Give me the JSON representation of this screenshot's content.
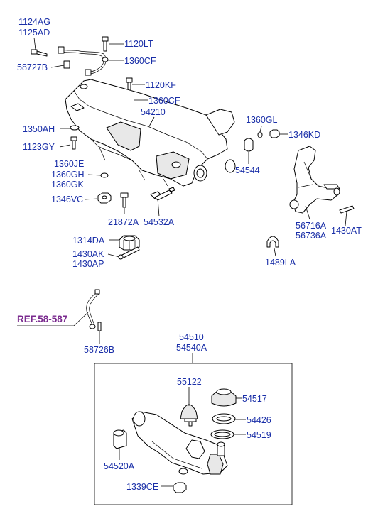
{
  "labels": {
    "p1124AG": "1124AG",
    "p1125AD": "1125AD",
    "p1120LT": "1120LT",
    "p1360CF_a": "1360CF",
    "p58727B": "58727B",
    "p1120KF": "1120KF",
    "p1360CF_b": "1360CF",
    "p54210": "54210",
    "p1350AH": "1350AH",
    "p1123GY": "1123GY",
    "p1360GL": "1360GL",
    "p1346KD": "1346KD",
    "p1360JE": "1360JE",
    "p1360GH": "1360GH",
    "p1360GK": "1360GK",
    "p54544": "54544",
    "p1346VC": "1346VC",
    "p21872A": "21872A",
    "p54532A": "54532A",
    "p56716A": "56716A",
    "p56736A": "56736A",
    "p1430AT": "1430AT",
    "p1314DA": "1314DA",
    "p1430AK": "1430AK",
    "p1430AP": "1430AP",
    "p1489LA": "1489LA",
    "ref": "REF.58-587",
    "p58726B": "58726B",
    "p54510": "54510",
    "p54540A": "54540A",
    "p55122": "55122",
    "p54517": "54517",
    "p54426": "54426",
    "p54519": "54519",
    "p54520A": "54520A",
    "p1339CE": "1339CE"
  },
  "colors": {
    "label": "#1a2fa8",
    "reference": "#7a2a8e",
    "line": "#000000"
  }
}
